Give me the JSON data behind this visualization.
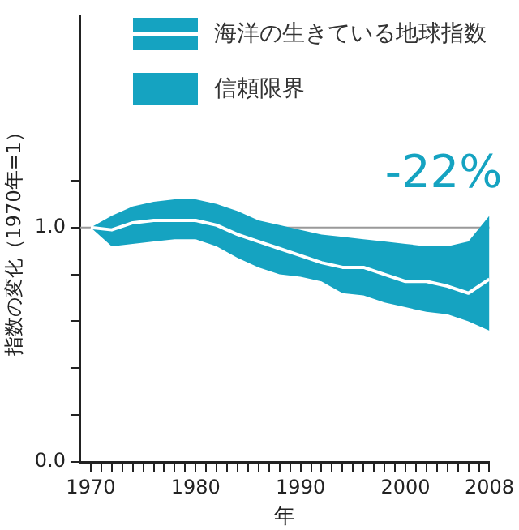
{
  "chart_data": {
    "type": "line",
    "xlabel": "年",
    "ylabel": "指数の変化（1970年=1）",
    "x": [
      1970,
      1972,
      1974,
      1976,
      1978,
      1980,
      1982,
      1984,
      1986,
      1988,
      1990,
      1992,
      1994,
      1996,
      1998,
      2000,
      2002,
      2004,
      2006,
      2008
    ],
    "series": [
      {
        "name": "海洋の生きている地球指数",
        "color": "#ffffff",
        "values": [
          1.0,
          0.99,
          1.02,
          1.03,
          1.03,
          1.03,
          1.01,
          0.97,
          0.94,
          0.91,
          0.88,
          0.85,
          0.83,
          0.83,
          0.8,
          0.77,
          0.77,
          0.75,
          0.72,
          0.78
        ],
        "lower": [
          1.0,
          0.92,
          0.93,
          0.94,
          0.95,
          0.95,
          0.92,
          0.87,
          0.83,
          0.8,
          0.79,
          0.77,
          0.72,
          0.71,
          0.68,
          0.66,
          0.64,
          0.63,
          0.6,
          0.56
        ],
        "upper": [
          1.0,
          1.05,
          1.09,
          1.11,
          1.12,
          1.12,
          1.1,
          1.07,
          1.03,
          1.01,
          0.99,
          0.97,
          0.96,
          0.95,
          0.94,
          0.93,
          0.92,
          0.92,
          0.94,
          1.05
        ]
      }
    ],
    "xlim": [
      1969,
      2008
    ],
    "xticks": [
      1970,
      {
        "value": 1971,
        "label": null
      },
      {
        "value": 1972,
        "label": null
      },
      {
        "value": 1973,
        "label": null
      },
      {
        "value": 1974,
        "label": null
      },
      {
        "value": 1975,
        "label": null
      },
      {
        "value": 1976,
        "label": null
      },
      {
        "value": 1977,
        "label": null
      },
      {
        "value": 1978,
        "label": null
      },
      {
        "value": 1979,
        "label": null
      },
      1980,
      {
        "value": 1981,
        "label": null
      },
      {
        "value": 1982,
        "label": null
      },
      {
        "value": 1983,
        "label": null
      },
      {
        "value": 1984,
        "label": null
      },
      {
        "value": 1985,
        "label": null
      },
      {
        "value": 1986,
        "label": null
      },
      {
        "value": 1987,
        "label": null
      },
      {
        "value": 1988,
        "label": null
      },
      {
        "value": 1989,
        "label": null
      },
      1990,
      {
        "value": 1991,
        "label": null
      },
      {
        "value": 1992,
        "label": null
      },
      {
        "value": 1993,
        "label": null
      },
      {
        "value": 1994,
        "label": null
      },
      {
        "value": 1995,
        "label": null
      },
      {
        "value": 1996,
        "label": null
      },
      {
        "value": 1997,
        "label": null
      },
      {
        "value": 1998,
        "label": null
      },
      {
        "value": 1999,
        "label": null
      },
      2000,
      {
        "value": 2001,
        "label": null
      },
      {
        "value": 2002,
        "label": null
      },
      {
        "value": 2003,
        "label": null
      },
      {
        "value": 2004,
        "label": null
      },
      {
        "value": 2005,
        "label": null
      },
      {
        "value": 2006,
        "label": null
      },
      {
        "value": 2007,
        "label": null
      },
      2008
    ],
    "ylim": [
      0,
      1.9
    ],
    "yticks": [
      {
        "value": 0,
        "label": "0.0"
      },
      {
        "value": 0.2,
        "label": null
      },
      {
        "value": 0.4,
        "label": null
      },
      {
        "value": 0.6,
        "label": null
      },
      {
        "value": 0.8,
        "label": null
      },
      {
        "value": 1,
        "label": "1.0"
      },
      {
        "value": 1.2,
        "label": null
      }
    ],
    "ref_lines": [
      {
        "axis": "y",
        "value": 1,
        "color": "#999999"
      }
    ],
    "annotations": [
      "信頼限界",
      "-22%"
    ],
    "grid": false,
    "legend": "top right",
    "marker": "none",
    "line_style": "solid"
  }
}
